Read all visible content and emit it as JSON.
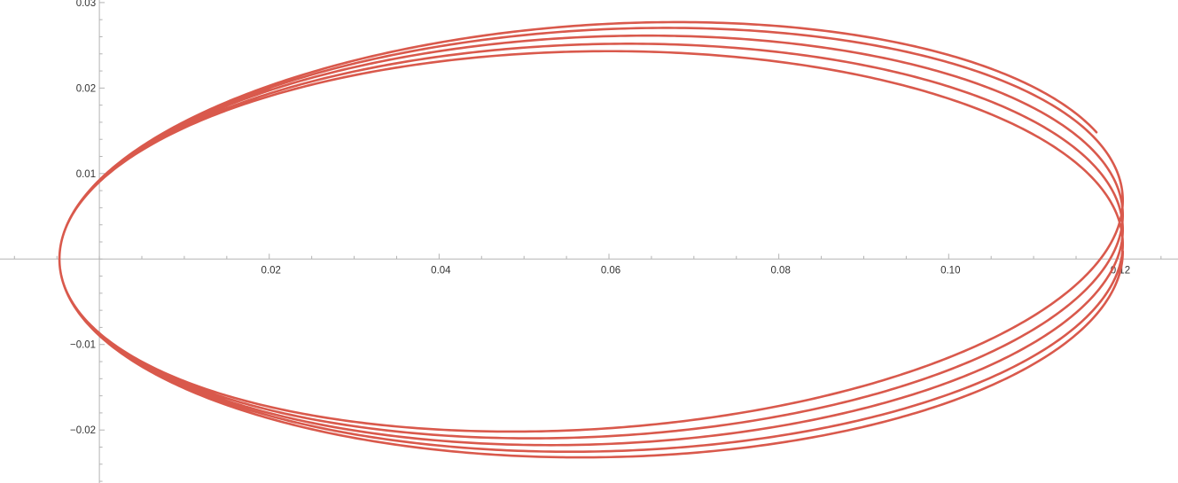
{
  "chart_data": {
    "type": "line",
    "subtype": "parametric",
    "title": "",
    "xlabel": "",
    "ylabel": "",
    "xlim": [
      -0.0117,
      0.127
    ],
    "ylim": [
      -0.0262,
      0.0303
    ],
    "grid": false,
    "x_ticks": [
      "0.02",
      "0.04",
      "0.06",
      "0.08",
      "0.10",
      "0.12"
    ],
    "x_tick_values": [
      0.02,
      0.04,
      0.06,
      0.08,
      0.1,
      0.12
    ],
    "y_ticks": [
      "0.03",
      "0.02",
      "0.01",
      "−0.01",
      "−0.02"
    ],
    "y_tick_values": [
      0.03,
      0.02,
      0.01,
      -0.01,
      -0.02
    ],
    "line_color": "#d9594c",
    "axis_color": "#b3b3b3",
    "curve": {
      "start_point": [
        0.1174,
        0.0148
      ],
      "x_min": -0.0047,
      "x_max": 0.1205,
      "loops": [
        {
          "top": 0.0274,
          "bottom": -0.0197
        },
        {
          "top": 0.0266,
          "bottom": -0.0206
        },
        {
          "top": 0.0258,
          "bottom": -0.0215
        },
        {
          "top": 0.0249,
          "bottom": -0.0223
        },
        {
          "top": 0.0241,
          "bottom": -0.0232
        }
      ]
    }
  }
}
